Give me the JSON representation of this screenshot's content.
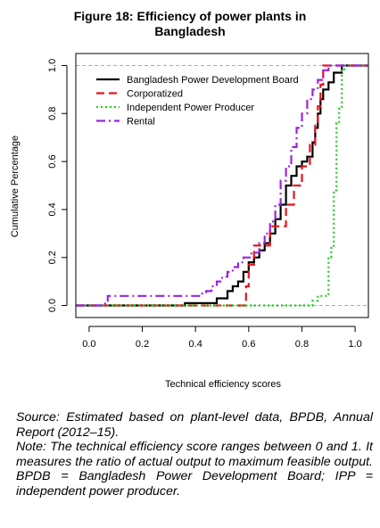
{
  "figure": {
    "title_line1": "Figure 18: Efficiency of power plants in",
    "title_line2": "Bangladesh"
  },
  "chart_data": {
    "type": "line",
    "step": true,
    "title": "",
    "xlabel": "Technical efficiency scores",
    "ylabel": "Cumulative Percentage",
    "xlim": [
      -0.05,
      1.05
    ],
    "ylim": [
      -0.05,
      1.05
    ],
    "xticks": [
      "0.0",
      "0.2",
      "0.4",
      "0.6",
      "0.8",
      "1.0"
    ],
    "yticks": [
      "0.0",
      "0.2",
      "0.4",
      "0.6",
      "0.8",
      "1.0"
    ],
    "reference_lines": [
      0,
      1
    ],
    "legend_position": "top-left",
    "series": [
      {
        "name": "Bangladesh Power Development Board",
        "color": "#000000",
        "dash": "solid",
        "points": [
          [
            -0.05,
            0
          ],
          [
            0.36,
            0
          ],
          [
            0.36,
            0.01
          ],
          [
            0.48,
            0.01
          ],
          [
            0.48,
            0.03
          ],
          [
            0.52,
            0.03
          ],
          [
            0.52,
            0.06
          ],
          [
            0.54,
            0.06
          ],
          [
            0.54,
            0.08
          ],
          [
            0.56,
            0.08
          ],
          [
            0.56,
            0.1
          ],
          [
            0.58,
            0.1
          ],
          [
            0.58,
            0.14
          ],
          [
            0.6,
            0.14
          ],
          [
            0.6,
            0.18
          ],
          [
            0.62,
            0.18
          ],
          [
            0.62,
            0.2
          ],
          [
            0.64,
            0.2
          ],
          [
            0.64,
            0.23
          ],
          [
            0.66,
            0.23
          ],
          [
            0.66,
            0.26
          ],
          [
            0.68,
            0.26
          ],
          [
            0.68,
            0.3
          ],
          [
            0.7,
            0.3
          ],
          [
            0.7,
            0.36
          ],
          [
            0.72,
            0.36
          ],
          [
            0.72,
            0.42
          ],
          [
            0.74,
            0.42
          ],
          [
            0.74,
            0.5
          ],
          [
            0.76,
            0.5
          ],
          [
            0.76,
            0.54
          ],
          [
            0.78,
            0.54
          ],
          [
            0.78,
            0.58
          ],
          [
            0.8,
            0.58
          ],
          [
            0.8,
            0.6
          ],
          [
            0.82,
            0.6
          ],
          [
            0.82,
            0.62
          ],
          [
            0.84,
            0.62
          ],
          [
            0.84,
            0.68
          ],
          [
            0.85,
            0.68
          ],
          [
            0.85,
            0.74
          ],
          [
            0.86,
            0.74
          ],
          [
            0.86,
            0.8
          ],
          [
            0.87,
            0.8
          ],
          [
            0.87,
            0.86
          ],
          [
            0.88,
            0.86
          ],
          [
            0.88,
            0.9
          ],
          [
            0.9,
            0.9
          ],
          [
            0.9,
            0.93
          ],
          [
            0.92,
            0.93
          ],
          [
            0.92,
            0.97
          ],
          [
            0.95,
            0.97
          ],
          [
            0.95,
            1
          ],
          [
            1.05,
            1
          ]
        ]
      },
      {
        "name": "Corporatized",
        "color": "#e8141a",
        "dash": "long",
        "points": [
          [
            -0.05,
            0
          ],
          [
            0.59,
            0
          ],
          [
            0.59,
            0.08
          ],
          [
            0.6,
            0.08
          ],
          [
            0.6,
            0.17
          ],
          [
            0.62,
            0.17
          ],
          [
            0.62,
            0.25
          ],
          [
            0.68,
            0.25
          ],
          [
            0.68,
            0.33
          ],
          [
            0.74,
            0.33
          ],
          [
            0.74,
            0.42
          ],
          [
            0.77,
            0.42
          ],
          [
            0.77,
            0.5
          ],
          [
            0.8,
            0.5
          ],
          [
            0.8,
            0.58
          ],
          [
            0.83,
            0.58
          ],
          [
            0.83,
            0.67
          ],
          [
            0.85,
            0.67
          ],
          [
            0.85,
            0.75
          ],
          [
            0.86,
            0.75
          ],
          [
            0.86,
            0.83
          ],
          [
            0.87,
            0.83
          ],
          [
            0.87,
            0.92
          ],
          [
            0.88,
            0.92
          ],
          [
            0.88,
            1
          ],
          [
            1.05,
            1
          ]
        ]
      },
      {
        "name": "Independent Power Producer",
        "color": "#22cc22",
        "dash": "dotted",
        "points": [
          [
            -0.05,
            0
          ],
          [
            0.84,
            0
          ],
          [
            0.84,
            0.02
          ],
          [
            0.86,
            0.02
          ],
          [
            0.86,
            0.04
          ],
          [
            0.9,
            0.04
          ],
          [
            0.9,
            0.2
          ],
          [
            0.91,
            0.2
          ],
          [
            0.91,
            0.24
          ],
          [
            0.92,
            0.24
          ],
          [
            0.92,
            0.48
          ],
          [
            0.93,
            0.48
          ],
          [
            0.93,
            0.76
          ],
          [
            0.94,
            0.76
          ],
          [
            0.94,
            0.82
          ],
          [
            0.95,
            0.82
          ],
          [
            0.95,
            0.98
          ],
          [
            0.96,
            0.98
          ],
          [
            0.96,
            1
          ],
          [
            1.05,
            1
          ]
        ]
      },
      {
        "name": "Rental",
        "color": "#9a24e0",
        "dash": "dashdot",
        "points": [
          [
            -0.05,
            0
          ],
          [
            0.06,
            0
          ],
          [
            0.06,
            0.02
          ],
          [
            0.07,
            0.02
          ],
          [
            0.07,
            0.04
          ],
          [
            0.42,
            0.04
          ],
          [
            0.42,
            0.05
          ],
          [
            0.44,
            0.05
          ],
          [
            0.44,
            0.06
          ],
          [
            0.46,
            0.06
          ],
          [
            0.46,
            0.08
          ],
          [
            0.48,
            0.08
          ],
          [
            0.48,
            0.1
          ],
          [
            0.5,
            0.1
          ],
          [
            0.5,
            0.12
          ],
          [
            0.52,
            0.12
          ],
          [
            0.52,
            0.14
          ],
          [
            0.54,
            0.14
          ],
          [
            0.54,
            0.16
          ],
          [
            0.56,
            0.16
          ],
          [
            0.56,
            0.18
          ],
          [
            0.58,
            0.18
          ],
          [
            0.58,
            0.2
          ],
          [
            0.61,
            0.2
          ],
          [
            0.61,
            0.22
          ],
          [
            0.64,
            0.22
          ],
          [
            0.64,
            0.26
          ],
          [
            0.66,
            0.26
          ],
          [
            0.66,
            0.3
          ],
          [
            0.68,
            0.3
          ],
          [
            0.68,
            0.35
          ],
          [
            0.7,
            0.35
          ],
          [
            0.7,
            0.42
          ],
          [
            0.72,
            0.42
          ],
          [
            0.72,
            0.52
          ],
          [
            0.74,
            0.52
          ],
          [
            0.74,
            0.58
          ],
          [
            0.76,
            0.58
          ],
          [
            0.76,
            0.66
          ],
          [
            0.78,
            0.66
          ],
          [
            0.78,
            0.74
          ],
          [
            0.8,
            0.74
          ],
          [
            0.8,
            0.8
          ],
          [
            0.82,
            0.8
          ],
          [
            0.82,
            0.86
          ],
          [
            0.84,
            0.86
          ],
          [
            0.84,
            0.9
          ],
          [
            0.86,
            0.9
          ],
          [
            0.86,
            0.94
          ],
          [
            0.88,
            0.94
          ],
          [
            0.88,
            0.98
          ],
          [
            0.9,
            0.98
          ],
          [
            0.9,
            1
          ],
          [
            1.05,
            1
          ]
        ]
      }
    ]
  },
  "notes": {
    "source": "Source: Estimated based on plant-level data, BPDB, Annual Report (2012–15).",
    "note": "Note: The technical efficiency score ranges between 0 and 1. It measures the ratio of actual output to maximum feasible output. BPDB = Bangladesh Power Development Board; IPP = independent power producer."
  }
}
